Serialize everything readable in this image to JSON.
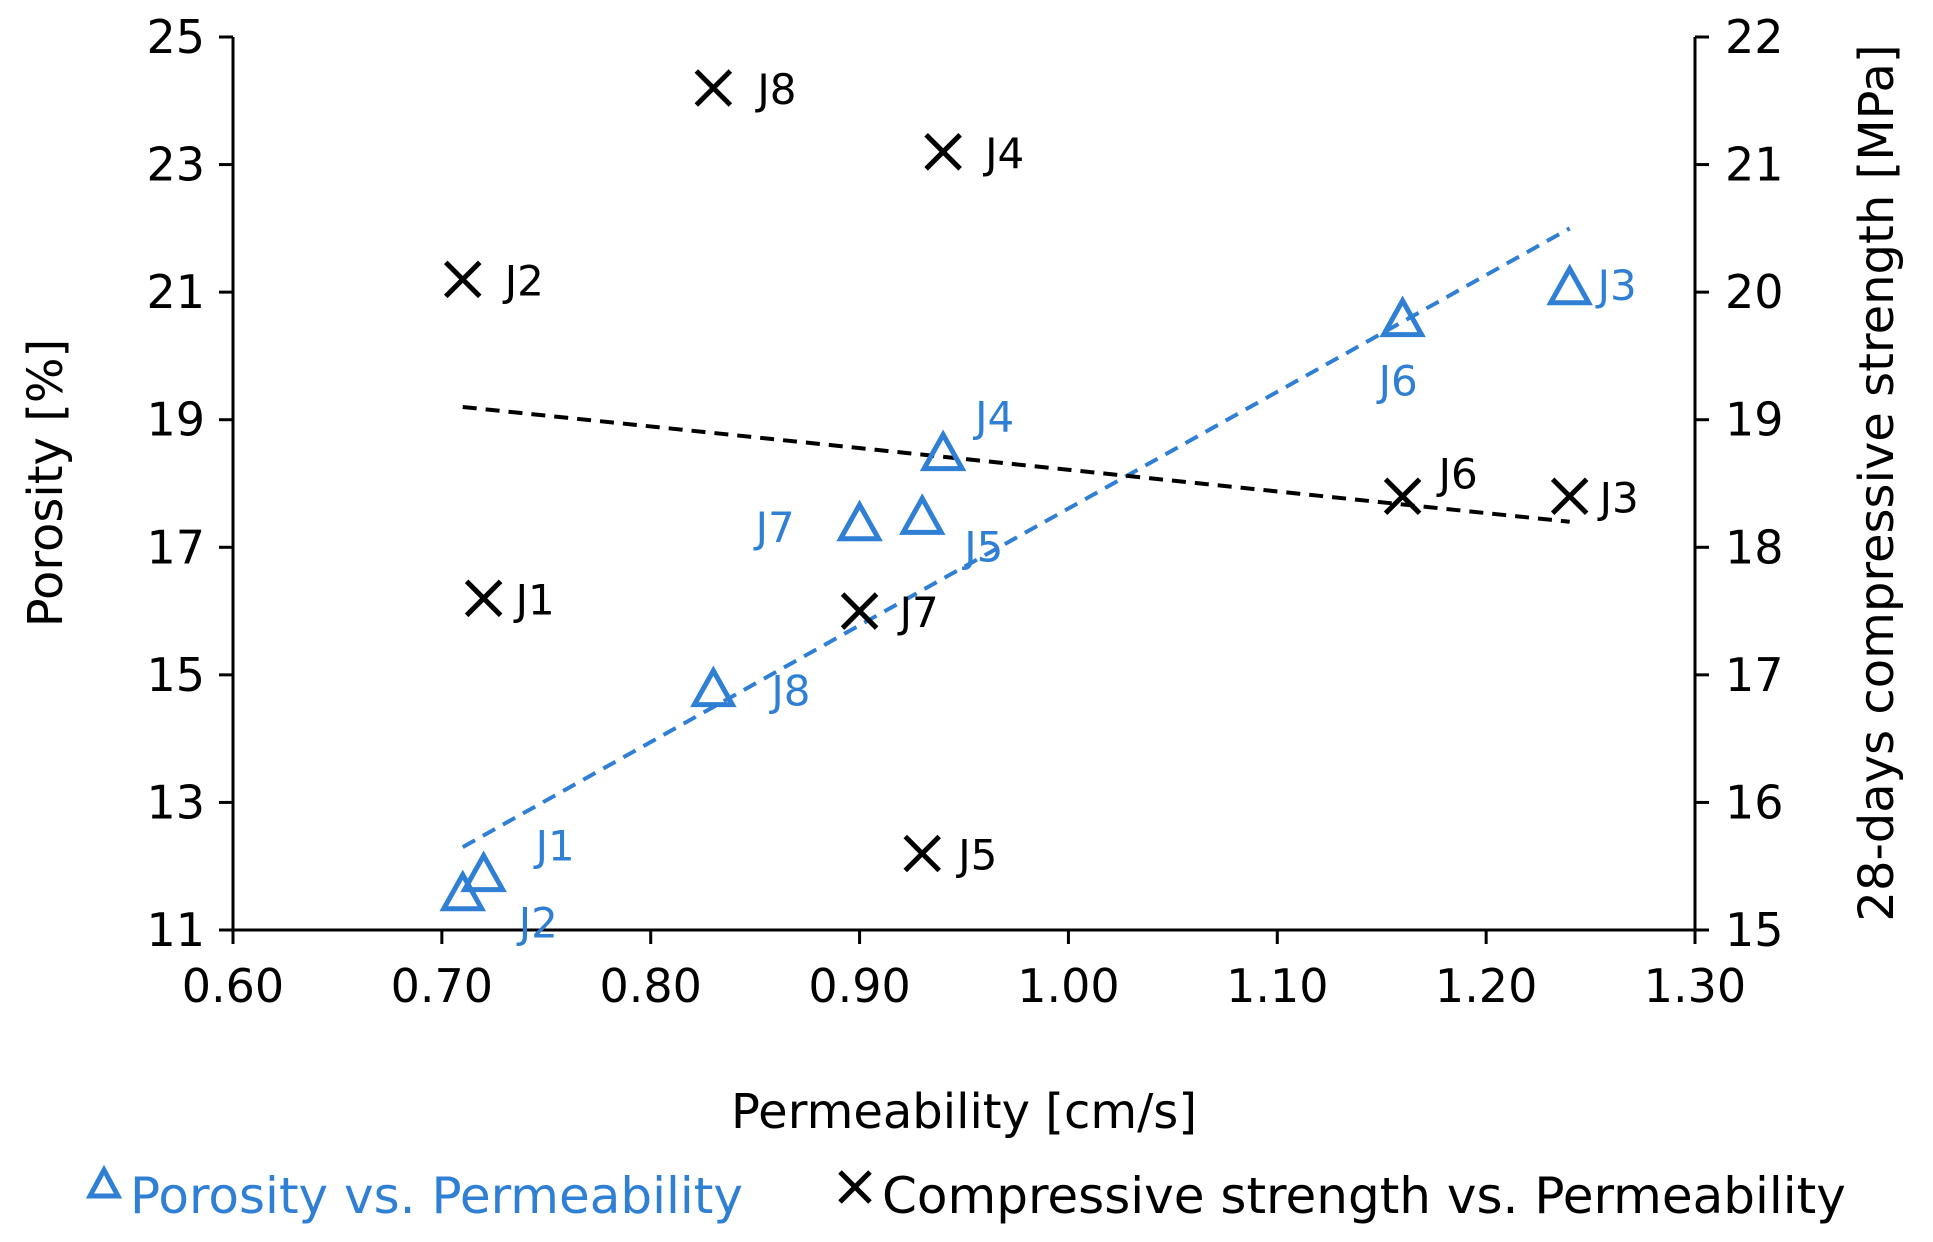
{
  "chart_data": {
    "type": "scatter",
    "xlabel": "Permeability [cm/s]",
    "ylabel_left": "Porosity [%]",
    "ylabel_right": "28-days compressive strength [MPa]",
    "xlim": [
      0.6,
      1.3
    ],
    "ylim_left": [
      11,
      25
    ],
    "ylim_right": [
      15,
      22
    ],
    "x_ticks": [
      "0.60",
      "0.70",
      "0.80",
      "0.90",
      "1.00",
      "1.10",
      "1.20",
      "1.30"
    ],
    "y_left_ticks": [
      "11",
      "13",
      "15",
      "17",
      "19",
      "21",
      "23",
      "25"
    ],
    "y_right_ticks": [
      "15",
      "16",
      "17",
      "18",
      "19",
      "20",
      "21",
      "22"
    ],
    "grid": false,
    "legend_position": "bottom",
    "series": [
      {
        "name": "Porosity vs. Permeability",
        "axis": "left",
        "marker": "triangle",
        "color": "#2f7fd4",
        "points": [
          {
            "label": "J1",
            "x": 0.72,
            "y": 11.9
          },
          {
            "label": "J2",
            "x": 0.71,
            "y": 11.6
          },
          {
            "label": "J3",
            "x": 1.24,
            "y": 21.1
          },
          {
            "label": "J4",
            "x": 0.94,
            "y": 18.5
          },
          {
            "label": "J5",
            "x": 0.93,
            "y": 17.5
          },
          {
            "label": "J6",
            "x": 1.16,
            "y": 20.6
          },
          {
            "label": "J7",
            "x": 0.9,
            "y": 17.4
          },
          {
            "label": "J8",
            "x": 0.83,
            "y": 14.8
          }
        ],
        "trendline": {
          "x": [
            0.71,
            1.24
          ],
          "y": [
            12.3,
            22.0
          ]
        }
      },
      {
        "name": "Compressive strength vs. Permeability",
        "axis": "right",
        "marker": "cross",
        "color": "#000000",
        "points": [
          {
            "label": "J1",
            "x": 0.72,
            "y": 17.6
          },
          {
            "label": "J2",
            "x": 0.71,
            "y": 20.1
          },
          {
            "label": "J3",
            "x": 1.24,
            "y": 18.4
          },
          {
            "label": "J4",
            "x": 0.94,
            "y": 21.1
          },
          {
            "label": "J5",
            "x": 0.93,
            "y": 15.6
          },
          {
            "label": "J6",
            "x": 1.16,
            "y": 18.4
          },
          {
            "label": "J7",
            "x": 0.9,
            "y": 17.5
          },
          {
            "label": "J8",
            "x": 0.83,
            "y": 21.6
          }
        ],
        "trendline": {
          "x": [
            0.71,
            1.24
          ],
          "y": [
            19.1,
            18.2
          ]
        }
      }
    ]
  }
}
